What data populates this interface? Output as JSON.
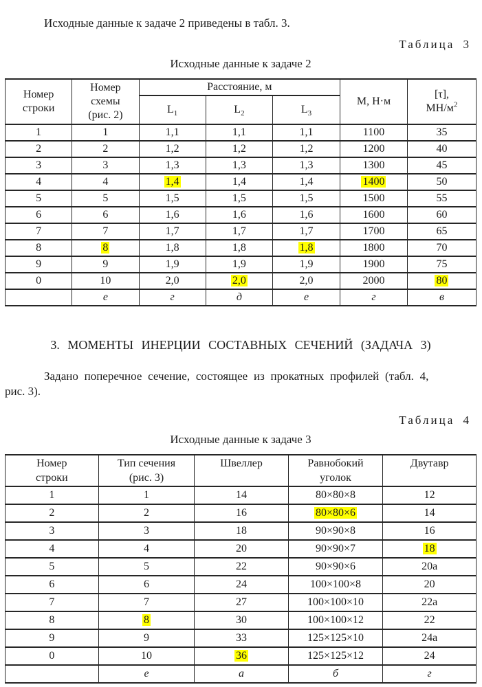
{
  "colors": {
    "highlight": "#ffff00",
    "text": "#1c1c1c",
    "border": "#262626"
  },
  "intro": {
    "text": "Исходные данные к задаче 2 приведены в табл. 3."
  },
  "table3": {
    "label": "Таблица 3",
    "caption": "Исходные данные к задаче 2",
    "headers": {
      "row_number_lines": [
        "Номер",
        "строки"
      ],
      "scheme_lines": [
        "Номер",
        "схемы",
        "(рис. 2)"
      ],
      "distance_group": "Расстояние, м",
      "distance_subs": [
        {
          "base": "L",
          "sub": "1"
        },
        {
          "base": "L",
          "sub": "2"
        },
        {
          "base": "L",
          "sub": "3"
        }
      ],
      "moment": "М, Н·м",
      "tau_line1": "[τ],",
      "tau_line2_base": "МН/м",
      "tau_line2_sup": "2"
    },
    "rows": [
      {
        "cells": [
          "1",
          "1",
          "1,1",
          "1,1",
          "1,1",
          "1100",
          "35"
        ]
      },
      {
        "cells": [
          "2",
          "2",
          "1,2",
          "1,2",
          "1,2",
          "1200",
          "40"
        ]
      },
      {
        "cells": [
          "3",
          "3",
          "1,3",
          "1,3",
          "1,3",
          "1300",
          "45"
        ]
      },
      {
        "cells": [
          "4",
          "4",
          "1,4",
          "1,4",
          "1,4",
          "1400",
          "50"
        ],
        "highlight": [
          2,
          5
        ]
      },
      {
        "cells": [
          "5",
          "5",
          "1,5",
          "1,5",
          "1,5",
          "1500",
          "55"
        ]
      },
      {
        "cells": [
          "6",
          "6",
          "1,6",
          "1,6",
          "1,6",
          "1600",
          "60"
        ]
      },
      {
        "cells": [
          "7",
          "7",
          "1,7",
          "1,7",
          "1,7",
          "1700",
          "65"
        ]
      },
      {
        "cells": [
          "8",
          "8",
          "1,8",
          "1,8",
          "1,8",
          "1800",
          "70"
        ],
        "highlight": [
          1,
          4
        ]
      },
      {
        "cells": [
          "9",
          "9",
          "1,9",
          "1,9",
          "1,9",
          "1900",
          "75"
        ]
      },
      {
        "cells": [
          "0",
          "10",
          "2,0",
          "2,0",
          "2,0",
          "2000",
          "80"
        ],
        "highlight": [
          3,
          6
        ]
      },
      {
        "cells": [
          "",
          "е",
          "г",
          "д",
          "е",
          "г",
          "в"
        ],
        "italic": true
      }
    ]
  },
  "section3": {
    "heading": "3. МОМЕНТЫ ИНЕРЦИИ СОСТАВНЫХ СЕЧЕНИЙ (ЗАДАЧА 3)",
    "paragraph_line1": "Задано поперечное сечение, состоящее из прокатных профилей (табл. 4,",
    "paragraph_line2": "рис. 3)."
  },
  "table4": {
    "label": "Таблица 4",
    "caption": "Исходные данные к задаче 3",
    "headers": {
      "row_number_lines": [
        "Номер",
        "строки"
      ],
      "section_type_lines": [
        "Тип сечения",
        "(рис. 3)"
      ],
      "channel": "Швеллер",
      "angle_lines": [
        "Равнобокий",
        "уголок"
      ],
      "ibeam": "Двутавр"
    },
    "rows": [
      {
        "cells": [
          "1",
          "1",
          "14",
          "80×80×8",
          "12"
        ]
      },
      {
        "cells": [
          "2",
          "2",
          "16",
          "80×80×6",
          "14"
        ],
        "highlight": [
          3
        ]
      },
      {
        "cells": [
          "3",
          "3",
          "18",
          "90×90×8",
          "16"
        ]
      },
      {
        "cells": [
          "4",
          "4",
          "20",
          "90×90×7",
          "18"
        ],
        "highlight": [
          4
        ]
      },
      {
        "cells": [
          "5",
          "5",
          "22",
          "90×90×6",
          "20а"
        ]
      },
      {
        "cells": [
          "6",
          "6",
          "24",
          "100×100×8",
          "20"
        ]
      },
      {
        "cells": [
          "7",
          "7",
          "27",
          "100×100×10",
          "22а"
        ]
      },
      {
        "cells": [
          "8",
          "8",
          "30",
          "100×100×12",
          "22"
        ],
        "highlight": [
          1
        ]
      },
      {
        "cells": [
          "9",
          "9",
          "33",
          "125×125×10",
          "24а"
        ]
      },
      {
        "cells": [
          "0",
          "10",
          "36",
          "125×125×12",
          "24"
        ],
        "highlight": [
          2
        ]
      },
      {
        "cells": [
          "",
          "е",
          "а",
          "б",
          "г"
        ],
        "italic": true
      }
    ]
  }
}
